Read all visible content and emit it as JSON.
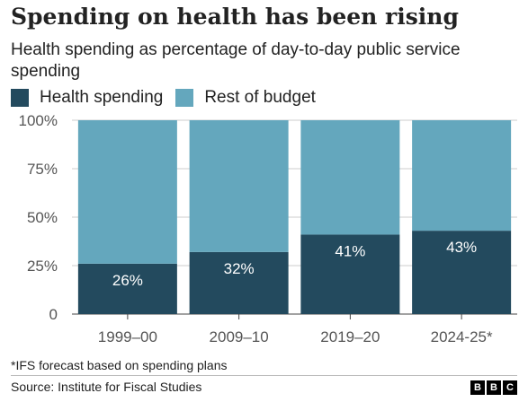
{
  "title": "Spending on health has been rising",
  "subtitle": "Health spending as percentage of day-to-day public service spending",
  "legend": [
    {
      "label": "Health spending",
      "color": "#234a5e"
    },
    {
      "label": "Rest of budget",
      "color": "#64a7bd"
    }
  ],
  "note": "*IFS forecast based on spending plans",
  "source": "Source: Institute for Fiscal Studies",
  "logo": [
    "B",
    "B",
    "C"
  ],
  "chart_data": {
    "type": "bar",
    "stacked": true,
    "categories": [
      "1999–00",
      "2009–10",
      "2019–20",
      "2024-25*"
    ],
    "series": [
      {
        "name": "Health spending",
        "values": [
          26,
          32,
          41,
          43
        ],
        "color": "#234a5e"
      },
      {
        "name": "Rest of budget",
        "values": [
          74,
          68,
          59,
          57
        ],
        "color": "#64a7bd"
      }
    ],
    "data_labels": [
      "26%",
      "32%",
      "41%",
      "43%"
    ],
    "ylim": [
      0,
      100
    ],
    "yticks": [
      {
        "value": 0,
        "label": "0"
      },
      {
        "value": 25,
        "label": "25%"
      },
      {
        "value": 50,
        "label": "50%"
      },
      {
        "value": 75,
        "label": "75%"
      },
      {
        "value": 100,
        "label": "100%"
      }
    ],
    "grid": true
  }
}
